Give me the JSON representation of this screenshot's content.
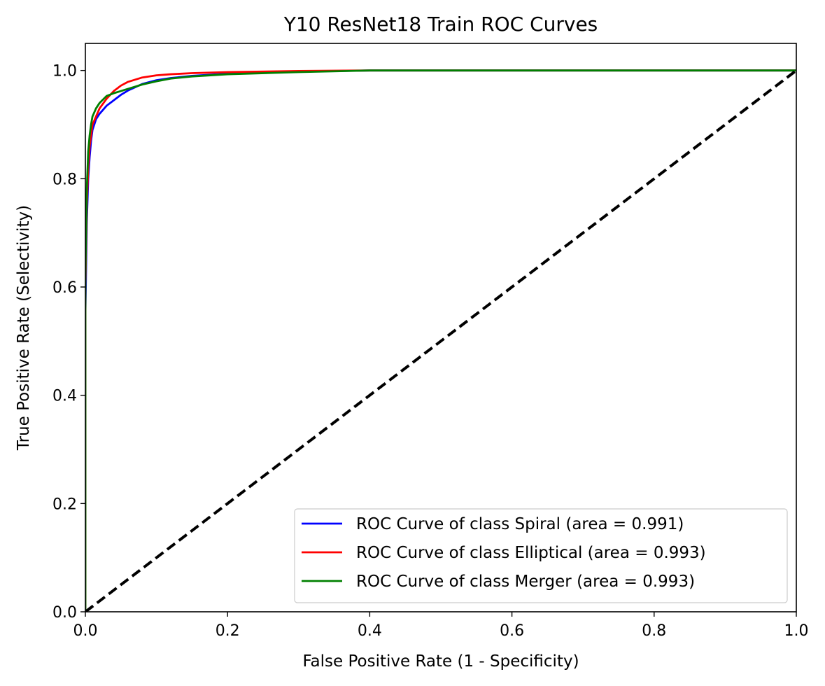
{
  "chart_data": {
    "type": "line",
    "title": "Y10 ResNet18 Train ROC Curves",
    "xlabel": "False Positive Rate (1 - Specificity)",
    "ylabel": "True Positive Rate (Selectivity)",
    "xlim": [
      0.0,
      1.0
    ],
    "ylim": [
      0.0,
      1.05
    ],
    "xticks": [
      "0.0",
      "0.2",
      "0.4",
      "0.6",
      "0.8",
      "1.0"
    ],
    "yticks": [
      "0.0",
      "0.2",
      "0.4",
      "0.6",
      "0.8",
      "1.0"
    ],
    "grid": false,
    "legend_position": "lower-right",
    "series": [
      {
        "name": "ROC Curve of class Spiral (area = 0.991)",
        "color": "#0000ff",
        "x": [
          0.0,
          0.0,
          0.002,
          0.004,
          0.006,
          0.008,
          0.01,
          0.015,
          0.02,
          0.03,
          0.04,
          0.05,
          0.06,
          0.08,
          0.1,
          0.12,
          0.15,
          0.2,
          0.3,
          0.4,
          0.6,
          0.8,
          1.0
        ],
        "y": [
          0.0,
          0.55,
          0.72,
          0.8,
          0.84,
          0.87,
          0.89,
          0.91,
          0.92,
          0.935,
          0.945,
          0.955,
          0.963,
          0.975,
          0.982,
          0.986,
          0.99,
          0.994,
          0.998,
          1.0,
          1.0,
          1.0,
          1.0
        ]
      },
      {
        "name": "ROC Curve of class Elliptical (area = 0.993)",
        "color": "#ff0000",
        "x": [
          0.0,
          0.0,
          0.002,
          0.004,
          0.006,
          0.008,
          0.01,
          0.015,
          0.02,
          0.03,
          0.04,
          0.05,
          0.06,
          0.08,
          0.1,
          0.12,
          0.15,
          0.2,
          0.3,
          0.4,
          0.6,
          0.8,
          1.0
        ],
        "y": [
          0.0,
          0.6,
          0.75,
          0.82,
          0.86,
          0.88,
          0.9,
          0.915,
          0.93,
          0.948,
          0.962,
          0.972,
          0.979,
          0.987,
          0.991,
          0.993,
          0.995,
          0.997,
          0.999,
          1.0,
          1.0,
          1.0,
          1.0
        ]
      },
      {
        "name": "ROC Curve of class Merger (area = 0.993)",
        "color": "#008000",
        "x": [
          0.0,
          0.0,
          0.002,
          0.004,
          0.006,
          0.008,
          0.01,
          0.015,
          0.02,
          0.03,
          0.04,
          0.05,
          0.06,
          0.08,
          0.1,
          0.12,
          0.15,
          0.2,
          0.3,
          0.4,
          0.6,
          0.8,
          1.0
        ],
        "y": [
          0.0,
          0.62,
          0.78,
          0.85,
          0.88,
          0.9,
          0.915,
          0.93,
          0.94,
          0.953,
          0.958,
          0.962,
          0.966,
          0.974,
          0.98,
          0.985,
          0.989,
          0.993,
          0.997,
          1.0,
          1.0,
          1.0,
          1.0
        ]
      },
      {
        "name": "",
        "color": "#000000",
        "style": "dashed",
        "x": [
          0.0,
          1.0
        ],
        "y": [
          0.0,
          1.0
        ]
      }
    ]
  }
}
